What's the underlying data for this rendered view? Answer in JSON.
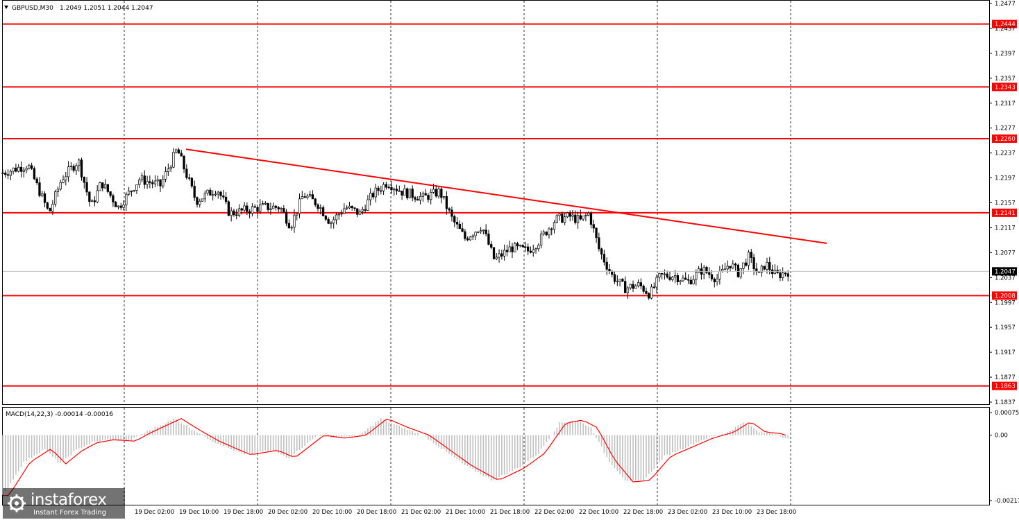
{
  "chart_data": {
    "type": "candlestick",
    "symbol": "GBPUSD,M30",
    "ohlc_header": "1.2049 1.2051 1.2044 1.2047",
    "price_axis": {
      "range": [
        1.2477,
        1.1837
      ],
      "ticks": [
        "1.2477",
        "1.2437",
        "1.2397",
        "1.2357",
        "1.2317",
        "1.2277",
        "1.2237",
        "1.2197",
        "1.2157",
        "1.2117",
        "1.2077",
        "1.2037",
        "1.1997",
        "1.1957",
        "1.1917",
        "1.1877",
        "1.1837"
      ]
    },
    "levels": [
      {
        "price": 1.2444,
        "label": "1.2444"
      },
      {
        "price": 1.2343,
        "label": "1.2343"
      },
      {
        "price": 1.226,
        "label": "1.2260"
      },
      {
        "price": 1.2141,
        "label": "1.2141"
      },
      {
        "price": 1.2008,
        "label": "1.2008"
      },
      {
        "price": 1.1863,
        "label": "1.1863"
      }
    ],
    "current_price": {
      "price": 1.2047,
      "label": "1.2047"
    },
    "trendline": {
      "start": {
        "bar": 8,
        "price": 1.2243
      },
      "end": {
        "bar": 37,
        "price": 1.2092
      }
    },
    "time_axis": {
      "labels": [
        "19 Dec 02:00",
        "19 Dec 10:00",
        "19 Dec 18:00",
        "20 Dec 02:00",
        "20 Dec 10:00",
        "20 Dec 18:00",
        "21 Dec 02:00",
        "21 Dec 10:00",
        "21 Dec 18:00",
        "22 Dec 02:00",
        "22 Dec 10:00",
        "22 Dec 18:00",
        "23 Dec 02:00",
        "23 Dec 10:00",
        "23 Dec 18:00"
      ]
    },
    "price_path": [
      {
        "t": 0,
        "p": 1.2205
      },
      {
        "t": 1.2,
        "p": 1.2218
      },
      {
        "t": 2.2,
        "p": 1.214
      },
      {
        "t": 2.8,
        "p": 1.2195
      },
      {
        "t": 3.6,
        "p": 1.2225
      },
      {
        "t": 4.2,
        "p": 1.215
      },
      {
        "t": 4.7,
        "p": 1.219
      },
      {
        "t": 5.5,
        "p": 1.215
      },
      {
        "t": 6.5,
        "p": 1.2195
      },
      {
        "t": 7.5,
        "p": 1.2185
      },
      {
        "t": 8.3,
        "p": 1.2243
      },
      {
        "t": 9.2,
        "p": 1.216
      },
      {
        "t": 10.2,
        "p": 1.218
      },
      {
        "t": 10.8,
        "p": 1.214
      },
      {
        "t": 12.3,
        "p": 1.215
      },
      {
        "t": 13.2,
        "p": 1.215
      },
      {
        "t": 13.7,
        "p": 1.212
      },
      {
        "t": 14.3,
        "p": 1.217
      },
      {
        "t": 15.0,
        "p": 1.2155
      },
      {
        "t": 15.6,
        "p": 1.2125
      },
      {
        "t": 16.3,
        "p": 1.215
      },
      {
        "t": 17.0,
        "p": 1.214
      },
      {
        "t": 17.6,
        "p": 1.217
      },
      {
        "t": 18.3,
        "p": 1.219
      },
      {
        "t": 19.0,
        "p": 1.2175
      },
      {
        "t": 20.0,
        "p": 1.2165
      },
      {
        "t": 20.8,
        "p": 1.2175
      },
      {
        "t": 21.4,
        "p": 1.213
      },
      {
        "t": 22.0,
        "p": 1.21
      },
      {
        "t": 22.8,
        "p": 1.212
      },
      {
        "t": 23.4,
        "p": 1.2065
      },
      {
        "t": 24.2,
        "p": 1.2085
      },
      {
        "t": 25.0,
        "p": 1.208
      },
      {
        "t": 25.5,
        "p": 1.2095
      },
      {
        "t": 26.3,
        "p": 1.213
      },
      {
        "t": 27.0,
        "p": 1.2135
      },
      {
        "t": 27.5,
        "p": 1.2128
      },
      {
        "t": 27.9,
        "p": 1.214
      },
      {
        "t": 28.4,
        "p": 1.208
      },
      {
        "t": 29.0,
        "p": 1.204
      },
      {
        "t": 29.6,
        "p": 1.202
      },
      {
        "t": 30.3,
        "p": 1.2025
      },
      {
        "t": 30.8,
        "p": 1.201
      },
      {
        "t": 31.3,
        "p": 1.204
      },
      {
        "t": 32.0,
        "p": 1.204
      },
      {
        "t": 32.6,
        "p": 1.203
      },
      {
        "t": 33.3,
        "p": 1.205
      },
      {
        "t": 34.0,
        "p": 1.2035
      },
      {
        "t": 34.6,
        "p": 1.206
      },
      {
        "t": 35.0,
        "p": 1.2045
      },
      {
        "t": 35.5,
        "p": 1.207
      },
      {
        "t": 36.0,
        "p": 1.204
      },
      {
        "t": 36.3,
        "p": 1.206
      },
      {
        "t": 36.8,
        "p": 1.204
      },
      {
        "t": 37.4,
        "p": 1.2047
      }
    ],
    "macd": {
      "label": "MACD(14,22,3) -0.00014 -0.00016",
      "range": [
        0.00075,
        -0.00217
      ],
      "ticks": [
        "0.00075",
        "0.00",
        "-0.00217"
      ],
      "path": [
        {
          "t": 0,
          "v": -0.002
        },
        {
          "t": 1.0,
          "v": -0.0009
        },
        {
          "t": 2.0,
          "v": -0.00045
        },
        {
          "t": 2.7,
          "v": -0.00095
        },
        {
          "t": 3.5,
          "v": -0.0005
        },
        {
          "t": 4.2,
          "v": -0.00025
        },
        {
          "t": 5.0,
          "v": -0.00015
        },
        {
          "t": 6.0,
          "v": -0.0002
        },
        {
          "t": 6.8,
          "v": 0.0001
        },
        {
          "t": 8.2,
          "v": 0.00055
        },
        {
          "t": 9.0,
          "v": 0.0002
        },
        {
          "t": 10.0,
          "v": -0.0002
        },
        {
          "t": 11.5,
          "v": -0.00065
        },
        {
          "t": 12.8,
          "v": -0.0005
        },
        {
          "t": 13.6,
          "v": -0.00075
        },
        {
          "t": 15.0,
          "v": 0.0
        },
        {
          "t": 16.0,
          "v": -0.0001
        },
        {
          "t": 17.0,
          "v": 0.0
        },
        {
          "t": 18.0,
          "v": 0.00055
        },
        {
          "t": 19.0,
          "v": 0.00025
        },
        {
          "t": 20.0,
          "v": 0.0
        },
        {
          "t": 21.0,
          "v": -0.0005
        },
        {
          "t": 22.0,
          "v": -0.001
        },
        {
          "t": 23.3,
          "v": -0.0015
        },
        {
          "t": 24.5,
          "v": -0.0011
        },
        {
          "t": 25.5,
          "v": -0.0006
        },
        {
          "t": 26.5,
          "v": 0.0004
        },
        {
          "t": 27.3,
          "v": 0.0005
        },
        {
          "t": 28.0,
          "v": 0.00025
        },
        {
          "t": 28.8,
          "v": -0.0008
        },
        {
          "t": 29.7,
          "v": -0.00155
        },
        {
          "t": 30.5,
          "v": -0.0015
        },
        {
          "t": 31.5,
          "v": -0.0007
        },
        {
          "t": 32.5,
          "v": -0.0004
        },
        {
          "t": 33.5,
          "v": -0.0001
        },
        {
          "t": 34.5,
          "v": 0.0001
        },
        {
          "t": 35.3,
          "v": 0.00045
        },
        {
          "t": 36.0,
          "v": 0.0001
        },
        {
          "t": 36.8,
          "v": 5e-05
        },
        {
          "t": 37.4,
          "v": -0.00014
        }
      ]
    }
  },
  "colors": {
    "level": "#ff0000",
    "trend": "#ff0000",
    "candle": "#000000",
    "grid": "#000000",
    "current": "#c0c0c0",
    "macd_hist": "#c0c0c0",
    "macd_signal": "#ff0000",
    "label_bg": "#ff0000"
  },
  "watermark": {
    "name": "instaforex",
    "tagline": "Instant Forex Trading"
  }
}
